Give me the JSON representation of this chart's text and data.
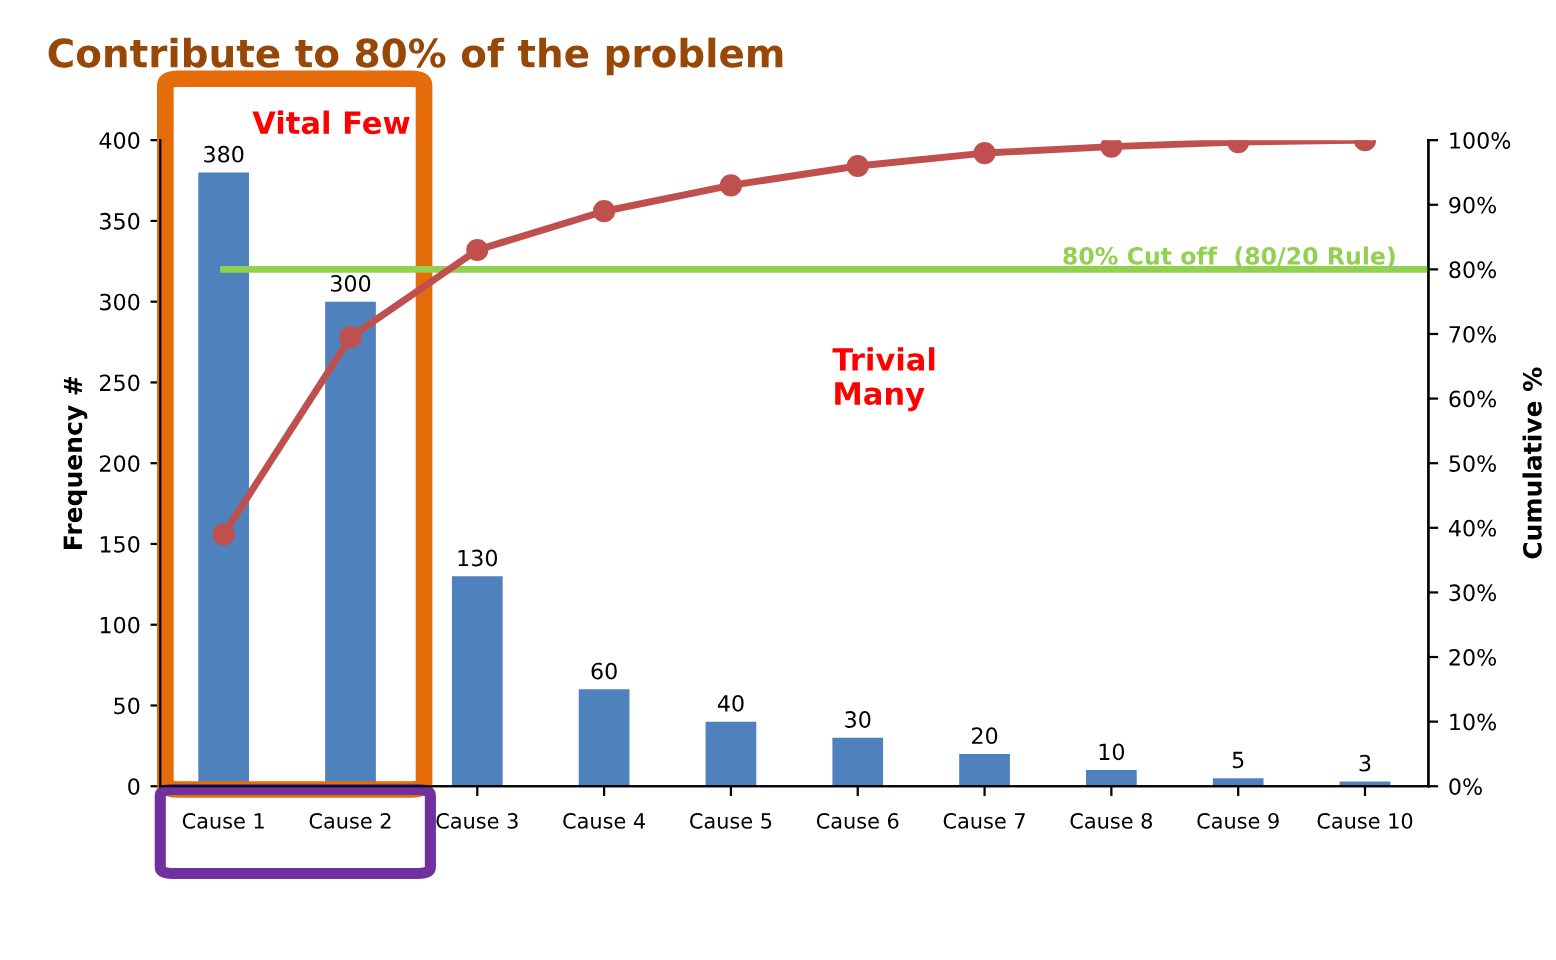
{
  "chart_data": {
    "type": "bar",
    "title": "Contribute to 80% of the problem",
    "ylabel": "Frequency #",
    "y2label": "Cumulative %",
    "categories": [
      "Cause 1",
      "Cause 2",
      "Cause 3",
      "Cause 4",
      "Cause 5",
      "Cause 6",
      "Cause 7",
      "Cause 8",
      "Cause 9",
      "Cause 10"
    ],
    "series": [
      {
        "color": "#4f81bd",
        "values": [
          380,
          300,
          130,
          60,
          40,
          30,
          20,
          10,
          5,
          3
        ],
        "value_labels": [
          "380",
          "300",
          "130",
          "60",
          "40",
          "30",
          "20",
          "10",
          "5",
          "3"
        ]
      },
      {
        "type": "line",
        "axis": "y2",
        "color": "#c0504d",
        "marker": "circle",
        "values": [
          39,
          69.5,
          83,
          89,
          93,
          96,
          98,
          99,
          99.7,
          100
        ]
      }
    ],
    "ylim": [
      0,
      400
    ],
    "yticks": [
      0,
      50,
      100,
      150,
      200,
      250,
      300,
      350,
      400
    ],
    "y2lim": [
      0,
      100
    ],
    "y2ticks": [
      {
        "value": 0,
        "label": "0%"
      },
      {
        "value": 10,
        "label": "10%"
      },
      {
        "value": 20,
        "label": "20%"
      },
      {
        "value": 30,
        "label": "30%"
      },
      {
        "value": 40,
        "label": "40%"
      },
      {
        "value": 50,
        "label": "50%"
      },
      {
        "value": 60,
        "label": "60%"
      },
      {
        "value": 70,
        "label": "70%"
      },
      {
        "value": 80,
        "label": "80%"
      },
      {
        "value": 90,
        "label": "90%"
      },
      {
        "value": 100,
        "label": "100%"
      }
    ],
    "ref_lines": [
      {
        "axis": "y2",
        "value": 80,
        "label": "80% Cut off  (80/20 Rule)",
        "color": "#92d050"
      }
    ],
    "annotations": [
      "Vital Few",
      "Trivial\nMany"
    ],
    "grid": false,
    "legend": false
  }
}
